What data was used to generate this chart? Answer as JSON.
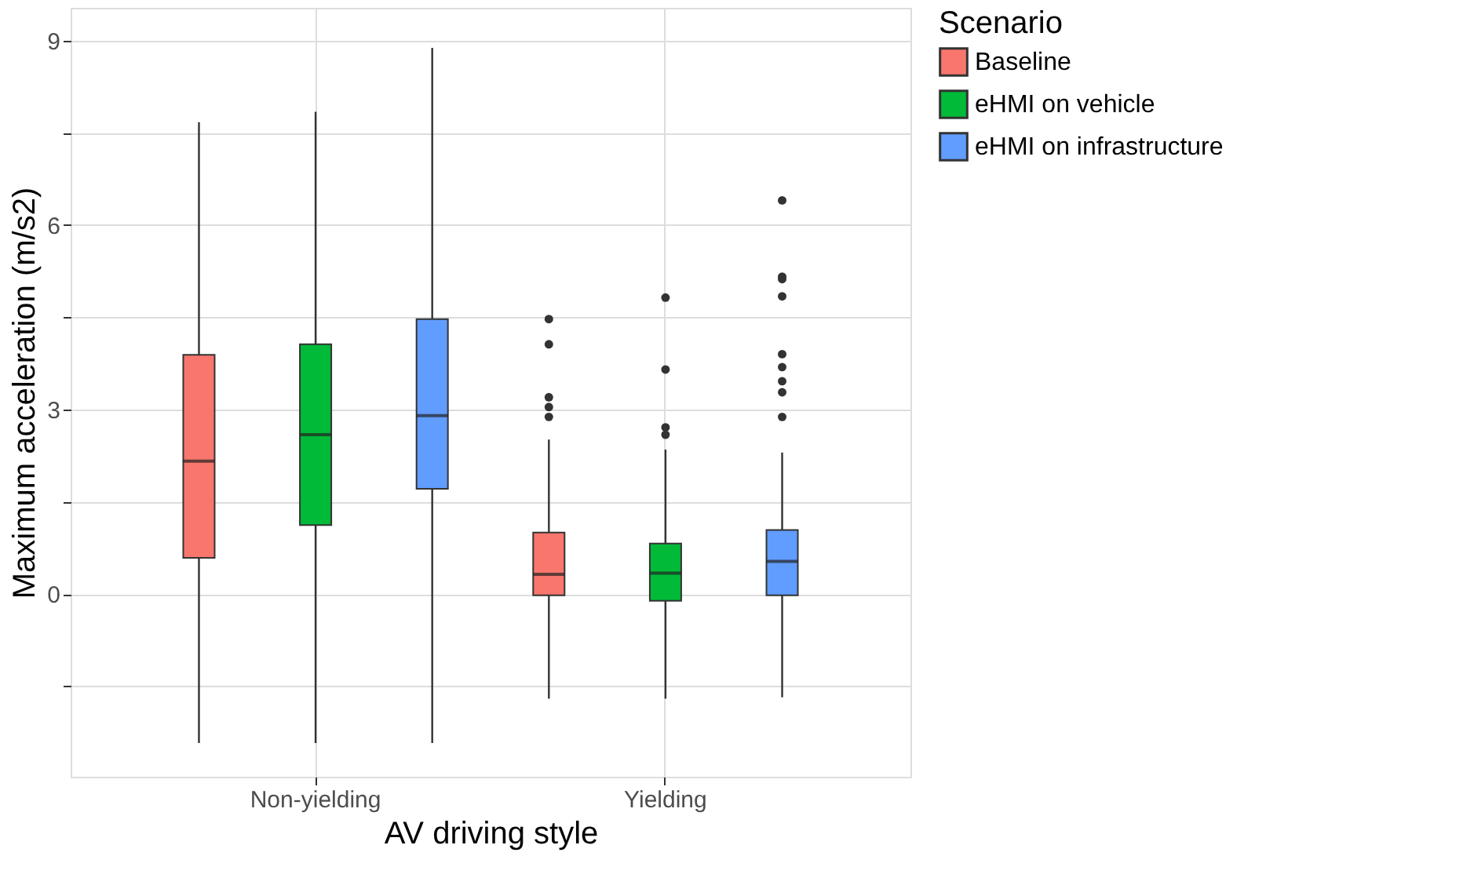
{
  "chart_data": {
    "type": "box",
    "xlabel": "AV driving style",
    "ylabel": "Maximum acceleration (m/s2)",
    "legend_title": "Scenario",
    "legend": "right",
    "grid": true,
    "categories": [
      "Non-yielding",
      "Yielding"
    ],
    "ylim": [
      -2.97,
      9.53
    ],
    "yticks": [
      {
        "value": -1.5,
        "label": null
      },
      0,
      {
        "value": 1.5,
        "label": null
      },
      3,
      {
        "value": 4.5,
        "label": null
      },
      6,
      {
        "value": 7.5,
        "label": null
      },
      9
    ],
    "series": [
      {
        "name": "Baseline",
        "color": "#f8766d",
        "boxes": [
          {
            "low": -2.42,
            "q1": 0.59,
            "median": 2.16,
            "q3": 3.89,
            "high": 7.67
          },
          {
            "low": -1.7,
            "q1": -0.02,
            "median": 0.32,
            "q3": 1.0,
            "high": 2.51,
            "outliers": [
              4.47,
              4.06,
              3.2,
              3.04,
              2.88
            ]
          }
        ]
      },
      {
        "name": "eHMI on vehicle",
        "color": "#00ba38",
        "boxes": [
          {
            "low": -2.42,
            "q1": 1.12,
            "median": 2.59,
            "q3": 4.06,
            "high": 7.84
          },
          {
            "low": -1.7,
            "q1": -0.11,
            "median": 0.34,
            "q3": 0.82,
            "high": 2.35,
            "outliers": [
              4.82,
              3.65,
              2.71,
              2.59
            ]
          }
        ]
      },
      {
        "name": "eHMI on infrastructure",
        "color": "#619cff",
        "boxes": [
          {
            "low": -2.42,
            "q1": 1.71,
            "median": 2.9,
            "q3": 4.47,
            "high": 8.88
          },
          {
            "low": -1.68,
            "q1": -0.02,
            "median": 0.53,
            "q3": 1.04,
            "high": 2.3,
            "outliers": [
              6.4,
              5.16,
              5.12,
              4.84,
              3.9,
              3.69,
              3.46,
              3.28,
              2.88
            ]
          }
        ]
      }
    ]
  }
}
